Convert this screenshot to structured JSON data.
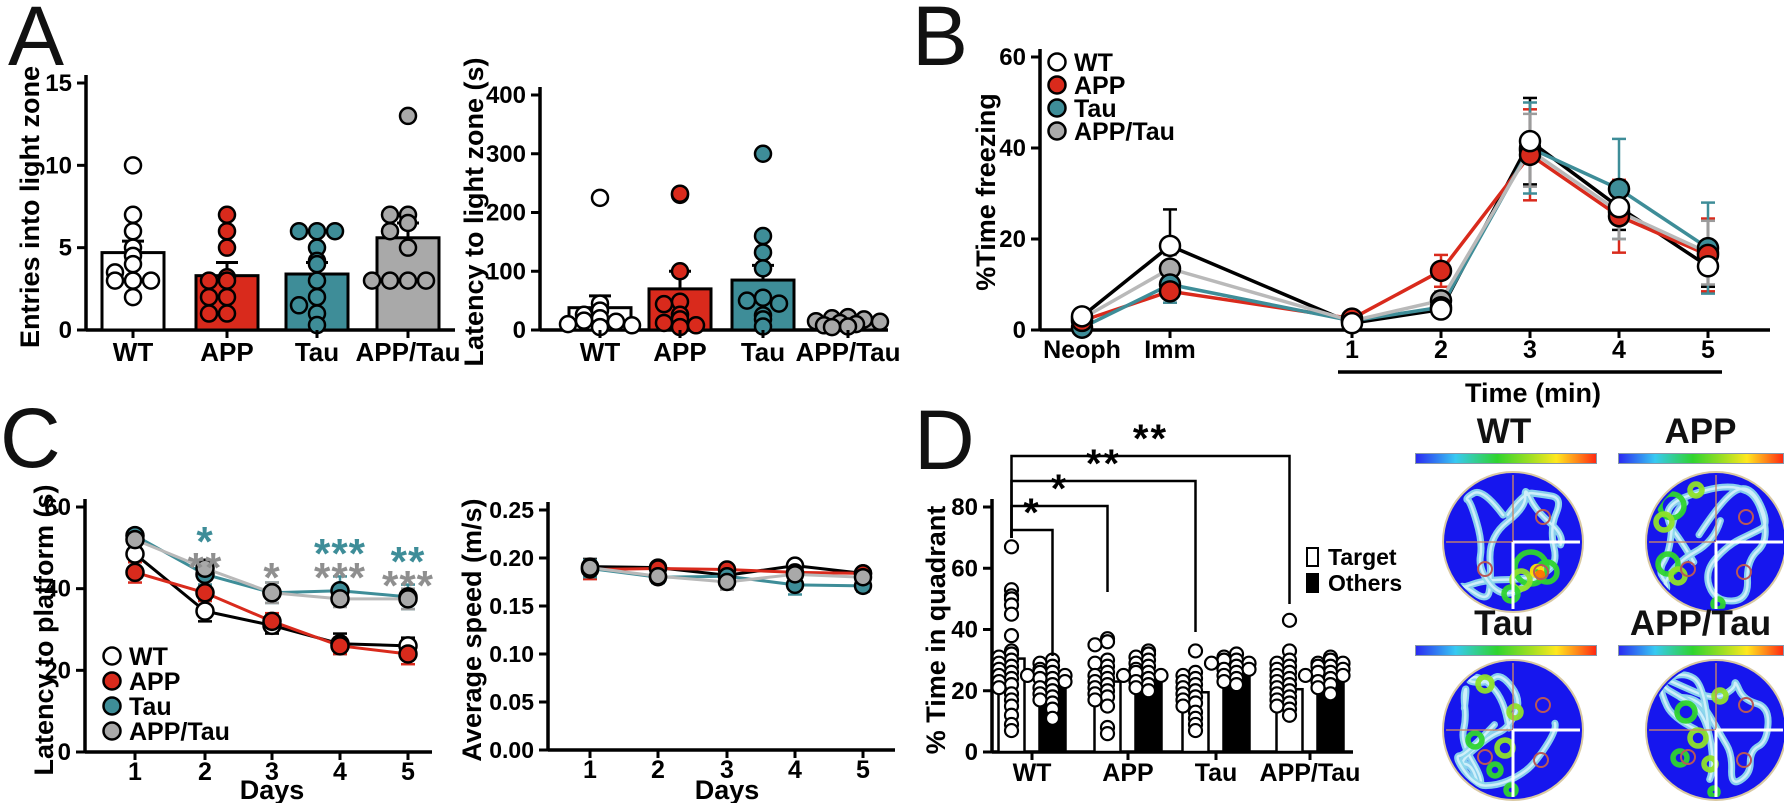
{
  "panels": [
    "A",
    "B",
    "C",
    "D"
  ],
  "colors": {
    "wt": "#FFFFFF",
    "app": "#D92A1C",
    "tau": "#3E8D98",
    "app_tau": "#A9A9A9",
    "app_tau_line": "#B9B9B9",
    "axis": "#000000",
    "sig_gray": "#8F8F8F"
  },
  "groups": [
    "WT",
    "APP",
    "Tau",
    "APP/Tau"
  ],
  "chart_data": [
    {
      "id": "entries_into_light_zone",
      "panel": "A",
      "type": "bar",
      "ylabel": "Entries into light zone",
      "categories": [
        "WT",
        "APP",
        "Tau",
        "APP/Tau"
      ],
      "values": [
        4.7,
        3.3,
        3.4,
        5.6
      ],
      "errors": [
        0.7,
        0.8,
        0.7,
        0.9
      ],
      "bar_colors": [
        "#FFFFFF",
        "#D92A1C",
        "#3E8D98",
        "#A9A9A9"
      ],
      "points": [
        [
          10,
          7,
          6,
          5,
          4.5,
          4,
          3.5,
          3,
          3,
          3,
          2
        ],
        [
          7,
          6,
          5,
          3.2,
          3,
          3,
          2,
          2,
          1,
          1
        ],
        [
          6,
          6,
          6,
          5,
          4.2,
          4,
          3,
          2,
          1.5,
          1,
          0.3
        ],
        [
          13,
          7,
          7,
          6.5,
          6,
          5,
          3,
          3,
          3,
          3
        ]
      ],
      "ylim": [
        0,
        15
      ],
      "ytick_values": [
        0,
        5,
        10,
        15
      ],
      "ytick_labels": [
        "0",
        "5",
        "10",
        "15"
      ],
      "grid": false
    },
    {
      "id": "latency_to_light_zone",
      "panel": "A",
      "type": "bar",
      "ylabel": "Latency to light zone (s)",
      "categories": [
        "WT",
        "APP",
        "Tau",
        "APP/Tau"
      ],
      "values": [
        38,
        70,
        85,
        16
      ],
      "errors": [
        20,
        30,
        25,
        6
      ],
      "bar_colors": [
        "#FFFFFF",
        "#D92A1C",
        "#3E8D98",
        "#A9A9A9"
      ],
      "points": [
        [
          225,
          45,
          33,
          26,
          20,
          16,
          14,
          10,
          8,
          5
        ],
        [
          230,
          232,
          100,
          48,
          44,
          26,
          18,
          12,
          8,
          5
        ],
        [
          300,
          160,
          132,
          105,
          55,
          50,
          45,
          25,
          18,
          6
        ],
        [
          22,
          20,
          18,
          15,
          14,
          12,
          10,
          8,
          6,
          5
        ]
      ],
      "ylim": [
        0,
        400
      ],
      "ytick_values": [
        0,
        100,
        200,
        300,
        400
      ],
      "ytick_labels": [
        "0",
        "100",
        "200",
        "300",
        "400"
      ],
      "grid": false
    },
    {
      "id": "time_freezing",
      "panel": "B",
      "type": "line",
      "ylabel": "%Time freezing",
      "xlabel": "Time (min)",
      "x_ticklabels": [
        "Neoph",
        "Imm",
        "1",
        "2",
        "3",
        "4",
        "5"
      ],
      "series": [
        {
          "name": "WT",
          "color": "#000000",
          "marker_fill": "#FFFFFF",
          "values": [
            3,
            18.5,
            1.5,
            4.5,
            41.5,
            27,
            14
          ],
          "errors": [
            1.2,
            8,
            1,
            1.5,
            9.5,
            5,
            4.5
          ]
        },
        {
          "name": "APP",
          "color": "#D92A1C",
          "marker_fill": "#D92A1C",
          "values": [
            2,
            8.5,
            2.5,
            13,
            38.5,
            25,
            16.5
          ],
          "errors": [
            1,
            2.5,
            1,
            3.5,
            10,
            8,
            8
          ]
        },
        {
          "name": "Tau",
          "color": "#3E8D98",
          "marker_fill": "#3E8D98",
          "values": [
            0.5,
            10,
            2,
            5,
            40,
            31,
            18
          ],
          "errors": [
            1,
            4,
            1,
            1.5,
            10,
            11,
            10
          ]
        },
        {
          "name": "APP/Tau",
          "color": "#B9B9B9",
          "marker_fill": "#A9A9A9",
          "values": [
            2.5,
            13.5,
            2,
            6.5,
            39.5,
            26,
            17
          ],
          "errors": [
            1,
            3,
            1,
            2,
            8,
            6,
            7
          ]
        }
      ],
      "ylim": [
        0,
        60
      ],
      "ytick_values": [
        0,
        20,
        40,
        60
      ],
      "ytick_labels": [
        "0",
        "20",
        "40",
        "60"
      ],
      "legend_position": "top-left",
      "grid": false
    },
    {
      "id": "latency_to_platform",
      "panel": "C",
      "type": "line",
      "ylabel": "Latency to platform (s)",
      "xlabel": "Days",
      "x_ticklabels": [
        "1",
        "2",
        "3",
        "4",
        "5"
      ],
      "series": [
        {
          "name": "WT",
          "color": "#000000",
          "marker_fill": "#FFFFFF",
          "values": [
            48.5,
            34.5,
            31,
            26.5,
            26
          ],
          "errors": [
            2,
            2.5,
            2,
            2.5,
            2
          ]
        },
        {
          "name": "APP",
          "color": "#D92A1C",
          "marker_fill": "#D92A1C",
          "values": [
            44,
            39,
            32,
            26,
            24
          ],
          "errors": [
            2.5,
            2,
            2,
            2,
            2.5
          ]
        },
        {
          "name": "Tau",
          "color": "#3E8D98",
          "marker_fill": "#3E8D98",
          "values": [
            53,
            43.5,
            39,
            39.5,
            38
          ],
          "errors": [
            1.5,
            2.5,
            2.5,
            3.5,
            3
          ]
        },
        {
          "name": "APP/Tau",
          "color": "#B9B9B9",
          "marker_fill": "#A9A9A9",
          "values": [
            52,
            45,
            39,
            37.5,
            37.5
          ],
          "errors": [
            2,
            2,
            2.5,
            2,
            2.5
          ]
        }
      ],
      "ylim": [
        0,
        60
      ],
      "ytick_values": [
        0,
        20,
        40,
        60
      ],
      "ytick_labels": [
        "0",
        "20",
        "40",
        "60"
      ],
      "legend_position": "bottom-left",
      "significance": [
        {
          "x": "2",
          "marks": [
            {
              "text": "*",
              "series": "Tau"
            },
            {
              "text": "**",
              "series": "APP/Tau"
            }
          ]
        },
        {
          "x": "3",
          "marks": [
            {
              "text": "*",
              "series": "APP/Tau"
            }
          ]
        },
        {
          "x": "4",
          "marks": [
            {
              "text": "***",
              "series": "Tau"
            },
            {
              "text": "***",
              "series": "APP/Tau"
            }
          ]
        },
        {
          "x": "5",
          "marks": [
            {
              "text": "**",
              "series": "Tau"
            },
            {
              "text": "***",
              "series": "APP/Tau"
            }
          ]
        }
      ],
      "grid": false
    },
    {
      "id": "average_speed",
      "panel": "C",
      "type": "line",
      "ylabel": "Average speed (m/s)",
      "xlabel": "Days",
      "x_ticklabels": [
        "1",
        "2",
        "3",
        "4",
        "5"
      ],
      "series": [
        {
          "name": "WT",
          "color": "#000000",
          "marker_fill": "#FFFFFF",
          "values": [
            0.191,
            0.19,
            0.182,
            0.192,
            0.184
          ],
          "errors": [
            0.008,
            0.005,
            0.006,
            0.005,
            0.005
          ]
        },
        {
          "name": "APP",
          "color": "#D92A1C",
          "marker_fill": "#D92A1C",
          "values": [
            0.188,
            0.189,
            0.188,
            0.185,
            0.184
          ],
          "errors": [
            0.01,
            0.005,
            0.005,
            0.005,
            0.005
          ]
        },
        {
          "name": "Tau",
          "color": "#3E8D98",
          "marker_fill": "#3E8D98",
          "values": [
            0.189,
            0.18,
            0.181,
            0.172,
            0.171
          ],
          "errors": [
            0.009,
            0.006,
            0.006,
            0.01,
            0.006
          ]
        },
        {
          "name": "APP/Tau",
          "color": "#B9B9B9",
          "marker_fill": "#A9A9A9",
          "values": [
            0.19,
            0.181,
            0.175,
            0.183,
            0.18
          ],
          "errors": [
            0.006,
            0.005,
            0.008,
            0.005,
            0.005
          ]
        }
      ],
      "ylim": [
        0,
        0.25
      ],
      "ytick_values": [
        0,
        0.05,
        0.1,
        0.15,
        0.2,
        0.25
      ],
      "ytick_labels": [
        "0.00",
        "0.05",
        "0.10",
        "0.15",
        "0.20",
        "0.25"
      ],
      "grid": false
    },
    {
      "id": "time_in_quadrant",
      "panel": "D",
      "type": "bar",
      "subtype": "grouped_scatter",
      "ylabel": "% Time in quadrant",
      "categories": [
        "WT",
        "APP",
        "Tau",
        "APP/Tau"
      ],
      "series": [
        {
          "name": "Target",
          "fill": "#FFFFFF",
          "values": [
            30.5,
            23,
            19.5,
            20.5
          ],
          "points": [
            [
              67,
              53,
              51,
              50,
              48,
              45,
              38,
              33,
              32,
              31,
              30,
              29,
              28,
              27,
              26,
              25,
              24,
              23,
              22,
              21,
              19,
              17,
              15,
              12,
              9,
              7
            ],
            [
              37,
              36,
              35,
              30,
              29,
              28,
              26,
              25,
              24,
              23,
              22,
              21,
              20,
              19,
              18,
              17,
              15,
              8,
              6
            ],
            [
              33,
              26,
              25,
              24,
              23,
              22,
              21,
              20,
              19,
              18,
              17,
              16,
              15,
              13,
              11,
              9,
              7
            ],
            [
              43,
              33,
              30,
              29,
              28,
              27,
              26,
              25,
              24,
              23,
              22,
              21,
              20,
              19,
              18,
              17,
              16,
              15,
              14,
              12
            ]
          ]
        },
        {
          "name": "Others",
          "fill": "#000000",
          "values": [
            23.5,
            25,
            28,
            26.5
          ],
          "points": [
            [
              30,
              29,
              28,
              27,
              26,
              26,
              25,
              25,
              24,
              24,
              23,
              22,
              21,
              20,
              19,
              18,
              17,
              16,
              14,
              11
            ],
            [
              33,
              32,
              31,
              30,
              29,
              28,
              27,
              26,
              26,
              25,
              25,
              24,
              23,
              22,
              21,
              20
            ],
            [
              32,
              31,
              30,
              30,
              29,
              29,
              28,
              27,
              27,
              26,
              25,
              24,
              23,
              22
            ],
            [
              31,
              30,
              29,
              29,
              28,
              28,
              27,
              26,
              26,
              25,
              25,
              24,
              23,
              22,
              21,
              19
            ]
          ]
        }
      ],
      "ylim": [
        0,
        80
      ],
      "ytick_values": [
        0,
        20,
        40,
        60,
        80
      ],
      "ytick_labels": [
        "0",
        "20",
        "40",
        "60",
        "80"
      ],
      "significance": [
        {
          "label": "*",
          "from": [
            "WT",
            "Target"
          ],
          "to": [
            "WT",
            "Others"
          ]
        },
        {
          "label": "*",
          "from": [
            "WT",
            "Target"
          ],
          "to": [
            "APP",
            "Target"
          ]
        },
        {
          "label": "**",
          "from": [
            "WT",
            "Target"
          ],
          "to": [
            "Tau",
            "Target"
          ]
        },
        {
          "label": "**",
          "from": [
            "WT",
            "Target"
          ],
          "to": [
            "APP/Tau",
            "Target"
          ]
        }
      ],
      "legend": [
        "Target",
        "Others"
      ],
      "grid": false
    }
  ],
  "heatmaps": {
    "titles": [
      "WT",
      "APP",
      "Tau",
      "APP/Tau"
    ],
    "colorbar_stops": [
      [
        "#2A2AF2",
        0
      ],
      [
        "#37C9F2",
        22
      ],
      [
        "#2FD42F",
        45
      ],
      [
        "#A8E022",
        65
      ],
      [
        "#FFE81E",
        78
      ],
      [
        "#FF8C1A",
        89
      ],
      [
        "#FF2A12",
        100
      ]
    ],
    "pool_fill": "#1616EE",
    "path_color": "#8ED9EC"
  },
  "legend_d": {
    "target": "Target",
    "others": "Others"
  }
}
